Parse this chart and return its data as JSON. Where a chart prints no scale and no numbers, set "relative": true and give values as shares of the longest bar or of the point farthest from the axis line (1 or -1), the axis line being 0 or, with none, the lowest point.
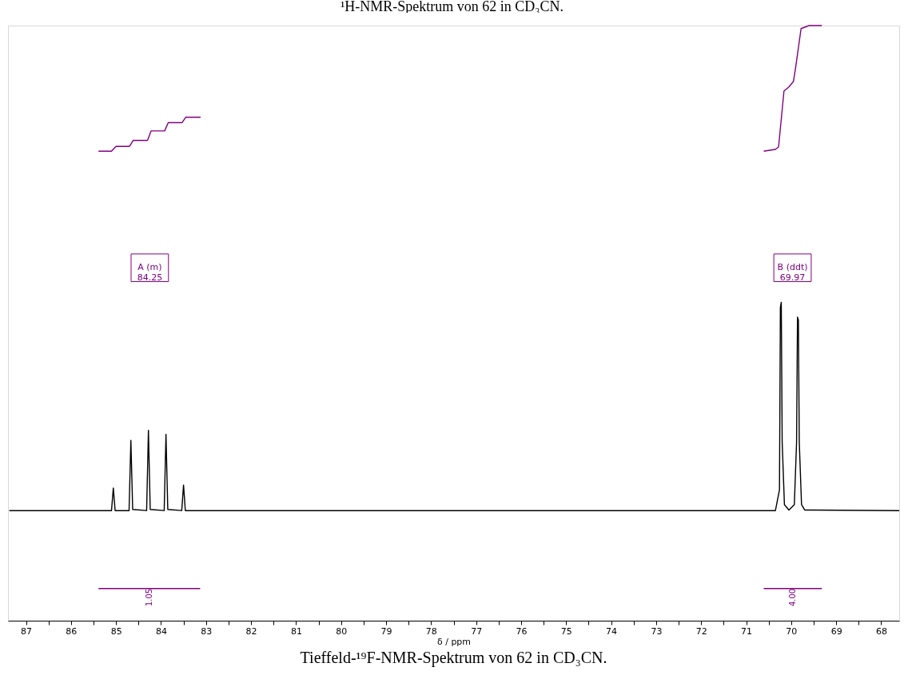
{
  "chart_data": {
    "type": "line",
    "title": "Tieffeld-¹⁹F-NMR-Spektrum von 62 in CD₃CN.",
    "xlabel": "δ / ppm",
    "relative": true,
    "xlim": [
      87.4,
      67.6
    ],
    "xticks": [
      87,
      {
        "value": 86.5,
        "label": null
      },
      86,
      {
        "value": 85.5,
        "label": null
      },
      85,
      {
        "value": 84.5,
        "label": null
      },
      84,
      {
        "value": 83.5,
        "label": null
      },
      83,
      {
        "value": 82.5,
        "label": null
      },
      82,
      {
        "value": 81.5,
        "label": null
      },
      81,
      {
        "value": 80.5,
        "label": null
      },
      80,
      {
        "value": 79.5,
        "label": null
      },
      79,
      {
        "value": 78.5,
        "label": null
      },
      78,
      {
        "value": 77.5,
        "label": null
      },
      77,
      {
        "value": 76.5,
        "label": null
      },
      76,
      {
        "value": 75.5,
        "label": null
      },
      75,
      {
        "value": 74.5,
        "label": null
      },
      74,
      {
        "value": 73.5,
        "label": null
      },
      73,
      {
        "value": 72.5,
        "label": null
      },
      72,
      {
        "value": 71.5,
        "label": null
      },
      71,
      {
        "value": 70.5,
        "label": null
      },
      70,
      {
        "value": 69.5,
        "label": null
      },
      69,
      {
        "value": 68.5,
        "label": null
      },
      68
    ],
    "line_style": "solid",
    "marker": "none",
    "series": [
      {
        "color": "#000000",
        "x": [
          87.37,
          85.1,
          85.06,
          85.02,
          84.71,
          84.67,
          84.63,
          84.32,
          84.28,
          84.24,
          83.93,
          83.89,
          83.85,
          83.54,
          83.5,
          83.46,
          70.35,
          70.26,
          70.24,
          70.22,
          70.2,
          70.15,
          70.05,
          69.93,
          69.88,
          69.86,
          69.84,
          69.82,
          69.77,
          69.7,
          67.6
        ],
        "values": [
          0.185,
          0.185,
          0.223,
          0.185,
          0.185,
          0.303,
          0.187,
          0.185,
          0.32,
          0.187,
          0.185,
          0.313,
          0.187,
          0.185,
          0.228,
          0.185,
          0.185,
          0.22,
          0.526,
          0.535,
          0.3,
          0.195,
          0.186,
          0.195,
          0.3,
          0.51,
          0.505,
          0.3,
          0.195,
          0.186,
          0.185
        ]
      },
      {
        "color": "#800080",
        "x": [
          85.39,
          85.1,
          85.0,
          84.7,
          84.62,
          84.3,
          84.22,
          83.92,
          83.84,
          83.53,
          83.45,
          83.12
        ],
        "values": [
          0.789,
          0.789,
          0.797,
          0.797,
          0.807,
          0.807,
          0.823,
          0.823,
          0.837,
          0.837,
          0.846,
          0.846
        ]
      },
      {
        "color": "#800080",
        "x": [
          70.61,
          70.35,
          70.28,
          70.16,
          70.05,
          69.95,
          69.9,
          69.78,
          69.6,
          69.32
        ],
        "values": [
          0.789,
          0.792,
          0.796,
          0.89,
          0.897,
          0.906,
          0.93,
          0.995,
          1.0,
          1.0
        ]
      },
      {
        "color": "#800080",
        "x": [
          85.39,
          83.13
        ],
        "values": [
          0.054,
          0.054
        ]
      },
      {
        "color": "#800080",
        "x": [
          70.61,
          69.32
        ],
        "values": [
          0.054,
          0.054
        ]
      }
    ],
    "annotations": [
      "¹H-NMR-Spektrum von 62 in CD₃CN.",
      "A (m)\n84.25",
      "B (ddt)\n69.97",
      {
        "text": "1.05",
        "x": 84.25,
        "y": 0.054
      },
      {
        "text": "4.00",
        "x": 69.97,
        "y": 0.054
      }
    ]
  }
}
